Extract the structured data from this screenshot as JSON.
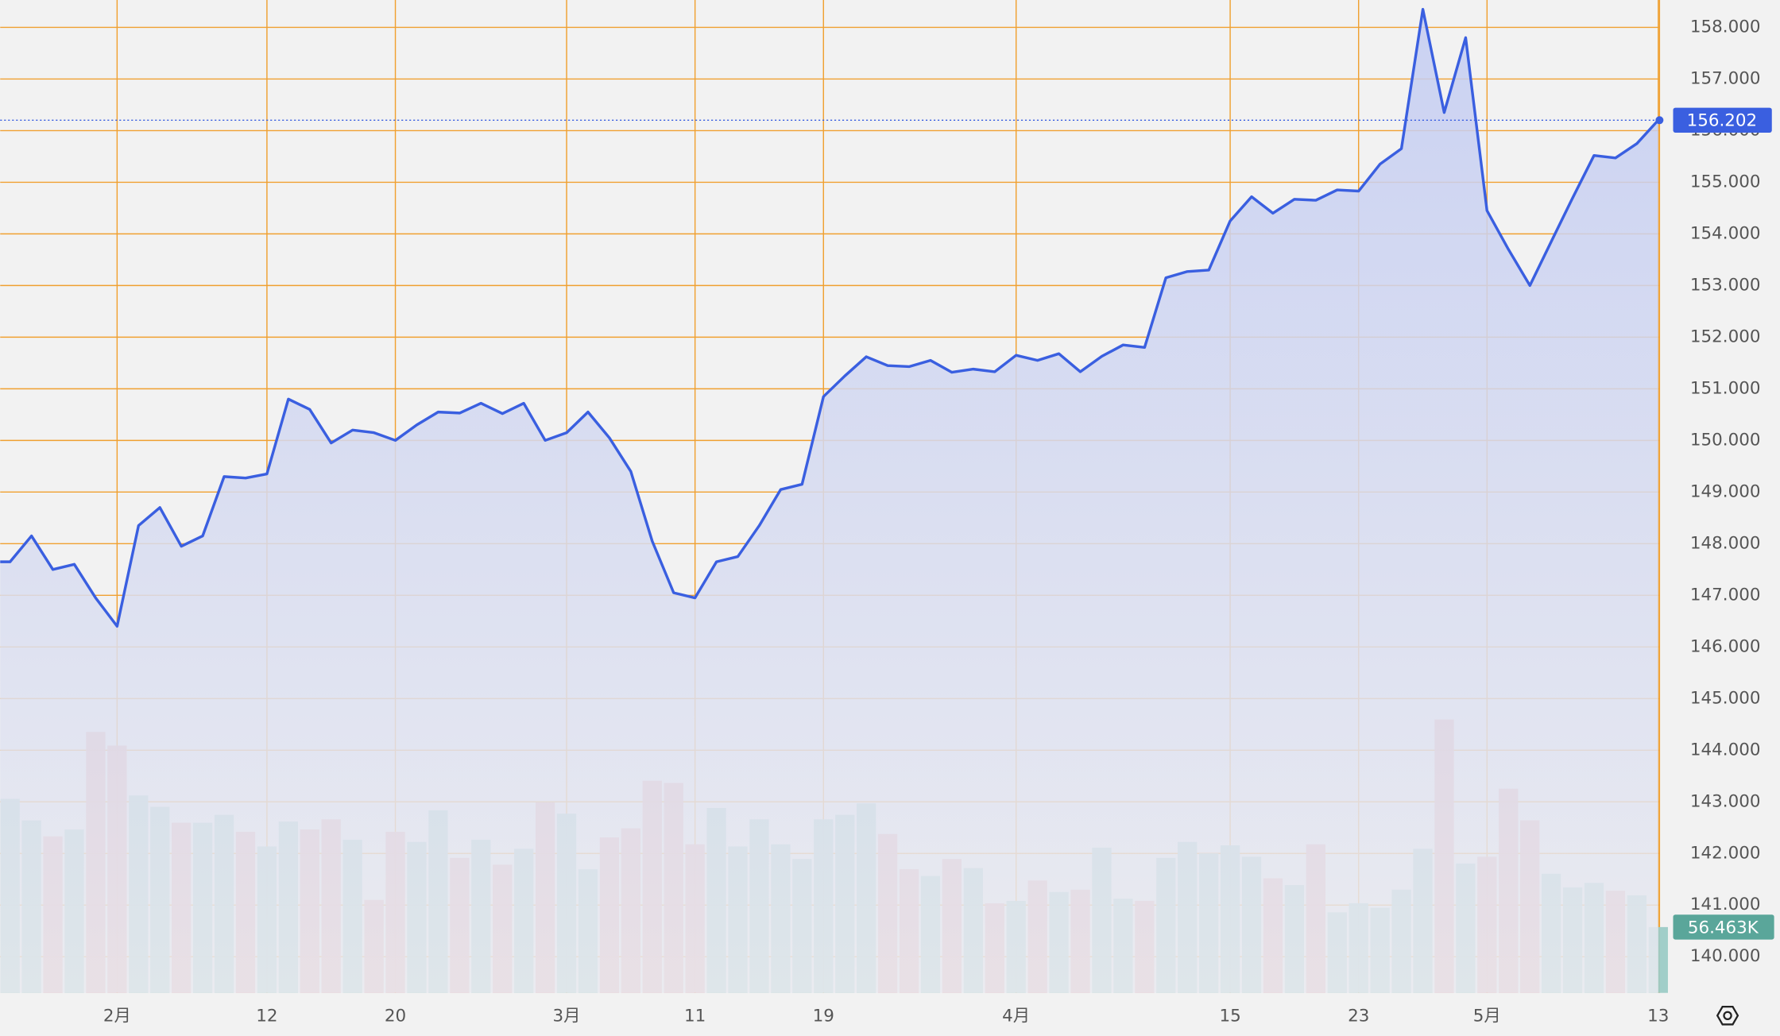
{
  "chart_data": {
    "type": "line",
    "categories": [
      null,
      null,
      null,
      null,
      null,
      "2月",
      null,
      null,
      null,
      null,
      null,
      null,
      "12",
      null,
      null,
      null,
      null,
      null,
      "20",
      null,
      null,
      null,
      null,
      null,
      null,
      null,
      "3月",
      null,
      null,
      null,
      null,
      null,
      "11",
      null,
      null,
      null,
      null,
      null,
      "19",
      null,
      null,
      null,
      null,
      null,
      null,
      null,
      null,
      "4月",
      null,
      null,
      null,
      null,
      null,
      null,
      null,
      null,
      null,
      "15",
      null,
      null,
      null,
      null,
      null,
      "23",
      null,
      null,
      null,
      null,
      null,
      "5月",
      null,
      null,
      null,
      null,
      null,
      null,
      null,
      "13"
    ],
    "series": [
      {
        "color": "#3a5fe0",
        "values": [
          147.65,
          148.15,
          147.5,
          147.6,
          146.95,
          146.4,
          148.35,
          148.7,
          147.95,
          148.15,
          149.3,
          149.27,
          149.35,
          150.8,
          150.6,
          149.95,
          150.2,
          150.15,
          150.0,
          150.3,
          150.55,
          150.53,
          150.72,
          150.52,
          150.72,
          150.0,
          150.15,
          150.55,
          150.05,
          149.4,
          148.05,
          147.05,
          146.95,
          147.65,
          147.75,
          148.35,
          149.05,
          149.15,
          150.85,
          151.25,
          151.62,
          151.45,
          151.43,
          151.55,
          151.32,
          151.38,
          151.33,
          151.65,
          151.55,
          151.68,
          151.33,
          151.63,
          151.85,
          151.8,
          153.15,
          153.27,
          153.3,
          154.25,
          154.72,
          154.4,
          154.67,
          154.65,
          154.85,
          154.83,
          155.35,
          155.65,
          158.35,
          156.35,
          157.8,
          154.45,
          153.7,
          153.0,
          153.85,
          154.7,
          155.52,
          155.47,
          155.75,
          156.202
        ]
      }
    ],
    "ylim": [
      139.3,
      158.53
    ],
    "yticks": [
      {
        "value": 140,
        "label": "140.000"
      },
      {
        "value": 141,
        "label": "141.000"
      },
      {
        "value": 142,
        "label": "142.000"
      },
      {
        "value": 143,
        "label": "143.000"
      },
      {
        "value": 144,
        "label": "144.000"
      },
      {
        "value": 145,
        "label": "145.000"
      },
      {
        "value": 146,
        "label": "146.000"
      },
      {
        "value": 147,
        "label": "147.000"
      },
      {
        "value": 148,
        "label": "148.000"
      },
      {
        "value": 149,
        "label": "149.000"
      },
      {
        "value": 150,
        "label": "150.000"
      },
      {
        "value": 151,
        "label": "151.000"
      },
      {
        "value": 152,
        "label": "152.000"
      },
      {
        "value": 153,
        "label": "153.000"
      },
      {
        "value": 154,
        "label": "154.000"
      },
      {
        "value": 155,
        "label": "155.000"
      },
      {
        "value": 156,
        "label": "156.000"
      },
      {
        "value": 157,
        "label": "157.000"
      },
      {
        "value": 158,
        "label": "158.000"
      }
    ],
    "grid": true,
    "grid_color": "#f0a030",
    "last_price": {
      "value": 156.202,
      "label": "156.202",
      "color": "#3a5fe0"
    },
    "volume": {
      "vlim": [
        0,
        240
      ],
      "last_label": {
        "value": 56.463,
        "label": "56.463K",
        "color": "#5aa69a"
      },
      "values": [
        166.5,
        148.0,
        134.3,
        140.2,
        223.9,
        212.2,
        169.4,
        159.7,
        146.0,
        146.0,
        152.8,
        138.2,
        125.6,
        147.0,
        140.2,
        148.9,
        131.4,
        79.8,
        138.2,
        129.5,
        156.7,
        115.8,
        131.4,
        110.0,
        123.6,
        163.5,
        153.8,
        106.1,
        133.4,
        141.2,
        182.0,
        180.1,
        127.5,
        158.7,
        125.6,
        148.9,
        127.5,
        114.9,
        148.9,
        152.8,
        162.6,
        136.3,
        106.1,
        100.3,
        114.9,
        107.1,
        76.9,
        78.9,
        96.4,
        86.6,
        88.6,
        124.6,
        80.8,
        78.9,
        115.8,
        129.5,
        119.7,
        126.6,
        116.8,
        98.3,
        92.5,
        127.5,
        69.1,
        76.9,
        73.0,
        88.6,
        123.6,
        234.6,
        111.0,
        116.8,
        175.2,
        148.0,
        102.2,
        90.5,
        94.4,
        87.6,
        83.7,
        56.463
      ],
      "colors": [
        "#9ccbc6",
        "#9ccbc6",
        "#e5a4a4",
        "#9ccbc6",
        "#e5a4a4",
        "#e5a4a4",
        "#9ccbc6",
        "#9ccbc6",
        "#e5a4a4",
        "#9ccbc6",
        "#9ccbc6",
        "#e5a4a4",
        "#9ccbc6",
        "#9ccbc6",
        "#e5a4a4",
        "#e5a4a4",
        "#9ccbc6",
        "#e5a4a4",
        "#e5a4a4",
        "#9ccbc6",
        "#9ccbc6",
        "#e5a4a4",
        "#9ccbc6",
        "#e5a4a4",
        "#9ccbc6",
        "#e5a4a4",
        "#9ccbc6",
        "#9ccbc6",
        "#e5a4a4",
        "#e5a4a4",
        "#e5a4a4",
        "#e5a4a4",
        "#e5a4a4",
        "#9ccbc6",
        "#9ccbc6",
        "#9ccbc6",
        "#9ccbc6",
        "#9ccbc6",
        "#9ccbc6",
        "#9ccbc6",
        "#9ccbc6",
        "#e5a4a4",
        "#e5a4a4",
        "#9ccbc6",
        "#e5a4a4",
        "#9ccbc6",
        "#e5a4a4",
        "#9ccbc6",
        "#e5a4a4",
        "#9ccbc6",
        "#e5a4a4",
        "#9ccbc6",
        "#9ccbc6",
        "#e5a4a4",
        "#9ccbc6",
        "#9ccbc6",
        "#9ccbc6",
        "#9ccbc6",
        "#9ccbc6",
        "#e5a4a4",
        "#9ccbc6",
        "#e5a4a4",
        "#9ccbc6",
        "#9ccbc6",
        "#9ccbc6",
        "#9ccbc6",
        "#9ccbc6",
        "#e5a4a4",
        "#9ccbc6",
        "#e5a4a4",
        "#e5a4a4",
        "#e5a4a4",
        "#9ccbc6",
        "#9ccbc6",
        "#9ccbc6",
        "#e5a4a4",
        "#9ccbc6",
        "#9ccbc6"
      ]
    }
  }
}
